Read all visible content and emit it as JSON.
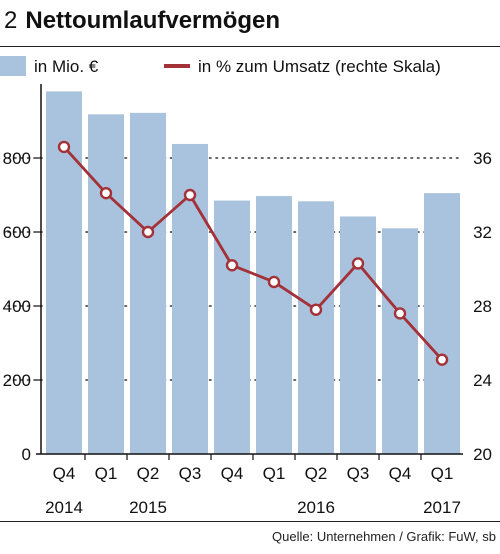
{
  "header": {
    "number": "2",
    "title": "Nettoumlaufvermögen"
  },
  "legend": {
    "bars_label": "in Mio. €",
    "line_label": "in % zum Umsatz (rechte Skala)"
  },
  "source": "Quelle: Unternehmen / Grafik: FuW, sb",
  "colors": {
    "bar": "#a9c2dd",
    "line": "#a33137",
    "axis": "#111111"
  },
  "chart_data": {
    "type": "bar",
    "categories": [
      "Q4",
      "Q1",
      "Q2",
      "Q3",
      "Q4",
      "Q1",
      "Q2",
      "Q3",
      "Q4",
      "Q1"
    ],
    "year_labels": [
      {
        "label": "2014",
        "category_index": 0
      },
      {
        "label": "2015",
        "category_index": 2
      },
      {
        "label": "2016",
        "category_index": 6
      },
      {
        "label": "2017",
        "category_index": 9
      }
    ],
    "series": [
      {
        "name": "in Mio. €",
        "type": "bar",
        "axis": "left",
        "values": [
          980,
          918,
          922,
          838,
          685,
          697,
          683,
          642,
          610,
          705
        ]
      },
      {
        "name": "in % zum Umsatz (rechte Skala)",
        "type": "line",
        "axis": "right",
        "values": [
          36.6,
          34.1,
          32.0,
          34.0,
          30.2,
          29.3,
          27.8,
          30.3,
          27.6,
          25.1
        ]
      }
    ],
    "y_left": {
      "ylim": [
        0,
        1000
      ],
      "ticks": [
        0,
        200,
        400,
        600,
        800
      ],
      "tick_labels": [
        "0",
        "200",
        "400",
        "600",
        "800"
      ]
    },
    "y_right": {
      "ylim": [
        20,
        40
      ],
      "ticks": [
        20,
        24,
        28,
        32,
        36
      ],
      "tick_labels": [
        "20",
        "24",
        "28",
        "32",
        "36"
      ]
    },
    "grid": "dotted horizontal"
  }
}
